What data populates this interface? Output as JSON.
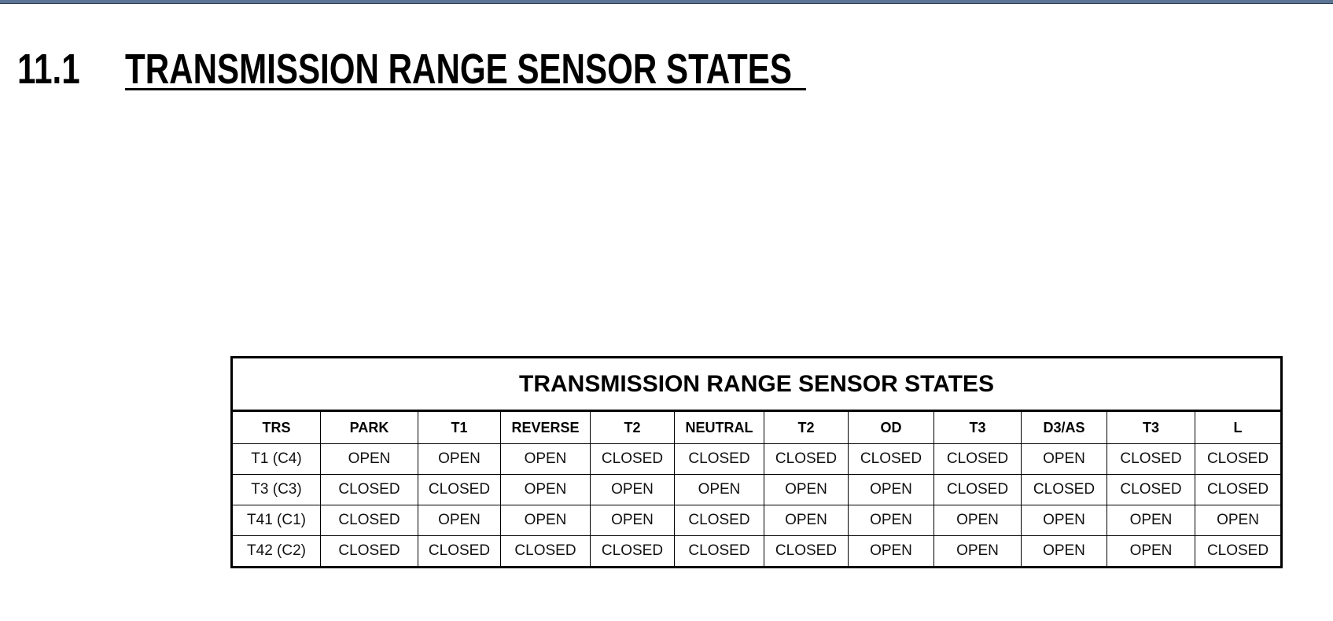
{
  "section": {
    "number": "11.1",
    "title": "TRANSMISSION RANGE SENSOR STATES"
  },
  "table": {
    "title": "TRANSMISSION RANGE SENSOR STATES",
    "headers": [
      "TRS",
      "PARK",
      "T1",
      "REVERSE",
      "T2",
      "NEUTRAL",
      "T2",
      "OD",
      "T3",
      "D3/AS",
      "T3",
      "L"
    ],
    "rows": [
      [
        "T1 (C4)",
        "OPEN",
        "OPEN",
        "OPEN",
        "CLOSED",
        "CLOSED",
        "CLOSED",
        "CLOSED",
        "CLOSED",
        "OPEN",
        "CLOSED",
        "CLOSED"
      ],
      [
        "T3 (C3)",
        "CLOSED",
        "CLOSED",
        "OPEN",
        "OPEN",
        "OPEN",
        "OPEN",
        "OPEN",
        "CLOSED",
        "CLOSED",
        "CLOSED",
        "CLOSED"
      ],
      [
        "T41 (C1)",
        "CLOSED",
        "OPEN",
        "OPEN",
        "OPEN",
        "CLOSED",
        "OPEN",
        "OPEN",
        "OPEN",
        "OPEN",
        "OPEN",
        "OPEN"
      ],
      [
        "T42 (C2)",
        "CLOSED",
        "CLOSED",
        "CLOSED",
        "CLOSED",
        "CLOSED",
        "CLOSED",
        "OPEN",
        "OPEN",
        "OPEN",
        "OPEN",
        "CLOSED"
      ]
    ]
  }
}
